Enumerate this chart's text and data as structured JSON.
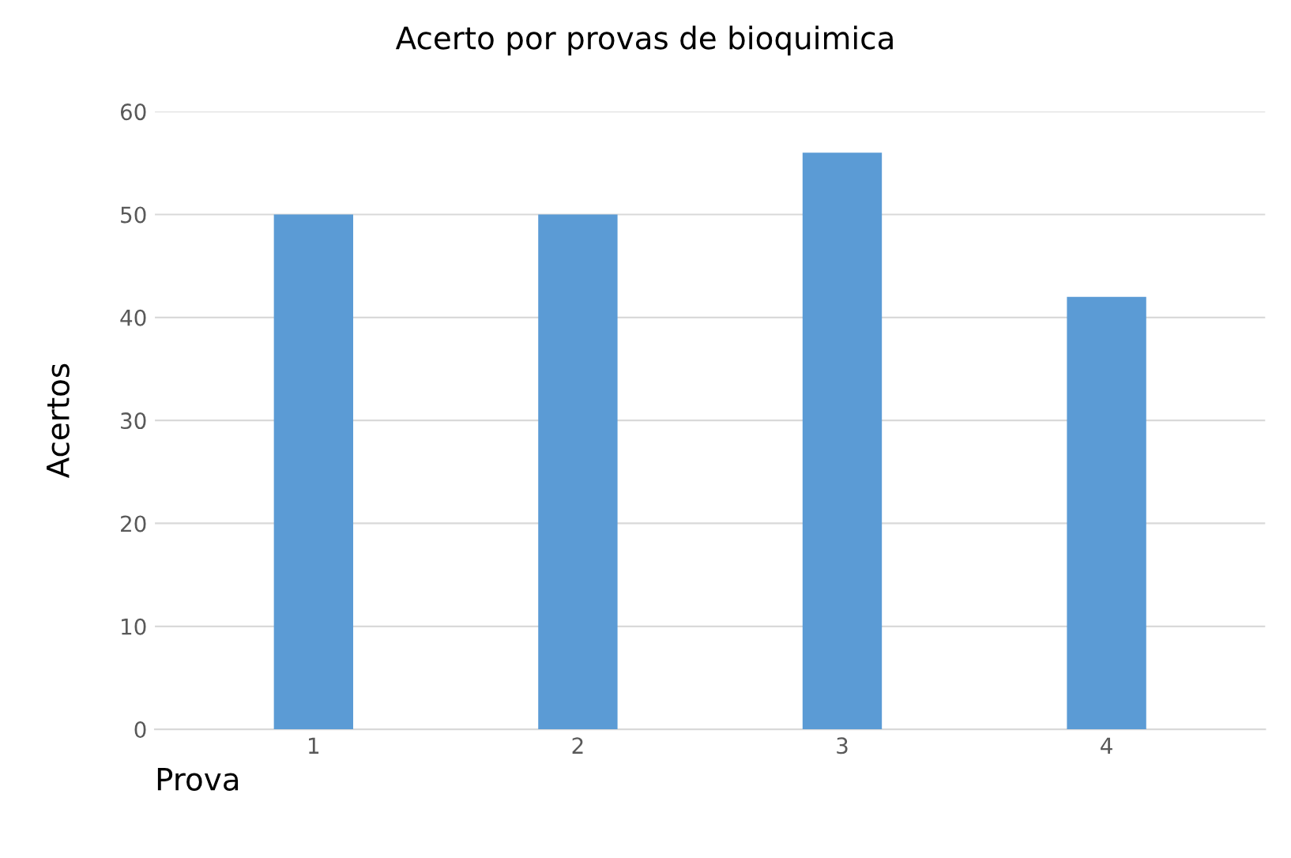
{
  "chart_data": {
    "type": "bar",
    "title": "Acerto por provas de bioquimica",
    "xlabel": "Prova",
    "ylabel": "Acertos",
    "categories": [
      "1",
      "2",
      "3",
      "4"
    ],
    "values": [
      50,
      50,
      56,
      42
    ],
    "color": "#5b9bd5",
    "ylim": [
      0,
      60
    ],
    "yticks": [
      0,
      10,
      20,
      30,
      40,
      50,
      60
    ],
    "grid": "y"
  }
}
